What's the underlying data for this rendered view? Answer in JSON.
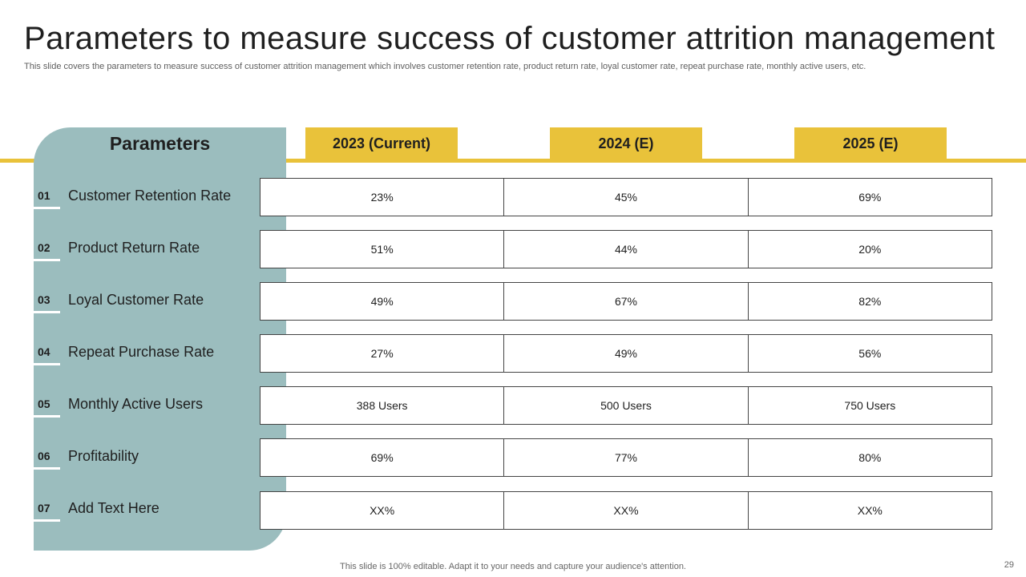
{
  "slide": {
    "title": "Parameters to measure success of customer attrition management",
    "subtitle": "This slide covers the parameters to measure success of customer attrition management which involves customer retention rate, product return rate, loyal customer rate, repeat purchase rate, monthly active users, etc.",
    "footer": "This slide is 100% editable. Adapt it to your needs and capture your audience's attention.",
    "page_number": "29"
  },
  "colors": {
    "accent_yellow": "#e9c23a",
    "panel_teal": "#9bbdbe"
  },
  "table": {
    "param_header": "Parameters",
    "columns": [
      "2023 (Current)",
      "2024 (E)",
      "2025 (E)"
    ],
    "rows": [
      {
        "num": "01",
        "label": "Customer Retention Rate",
        "values": [
          "23%",
          "45%",
          "69%"
        ]
      },
      {
        "num": "02",
        "label": "Product Return Rate",
        "values": [
          "51%",
          "44%",
          "20%"
        ]
      },
      {
        "num": "03",
        "label": "Loyal Customer Rate",
        "values": [
          "49%",
          "67%",
          "82%"
        ]
      },
      {
        "num": "04",
        "label": "Repeat Purchase Rate",
        "values": [
          "27%",
          "49%",
          "56%"
        ]
      },
      {
        "num": "05",
        "label": "Monthly Active Users",
        "values": [
          "388 Users",
          "500 Users",
          "750 Users"
        ]
      },
      {
        "num": "06",
        "label": "Profitability",
        "values": [
          "69%",
          "77%",
          "80%"
        ]
      },
      {
        "num": "07",
        "label": "Add Text Here",
        "values": [
          "XX%",
          "XX%",
          "XX%"
        ]
      }
    ]
  }
}
